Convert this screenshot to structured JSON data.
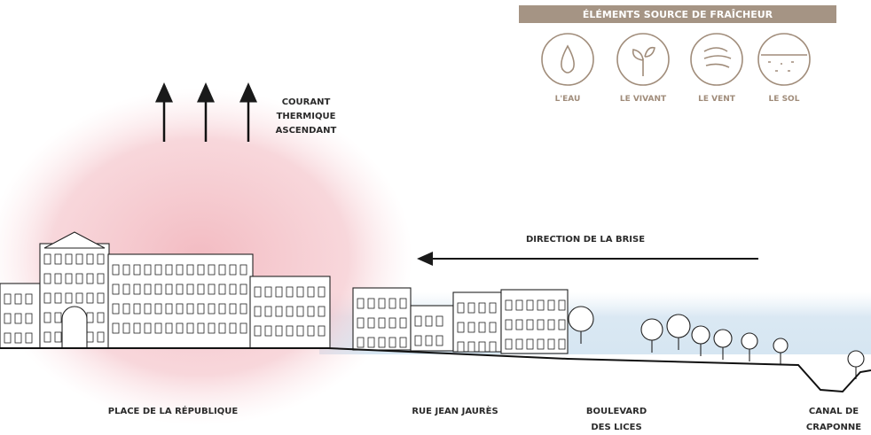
{
  "legend": {
    "title": "ÉLÉMENTS SOURCE DE FRAÎCHEUR",
    "items": [
      "L'EAU",
      "LE VIVANT",
      "LE VENT",
      "LE SOL"
    ]
  },
  "annotations": {
    "thermal": [
      "COURANT",
      "THERMIQUE",
      "ASCENDANT"
    ],
    "breeze": "DIRECTION DE LA BRISE"
  },
  "places": [
    [
      "PLACE DE LA RÉPUBLIQUE"
    ],
    [
      "RUE JEAN JAURÈS"
    ],
    [
      "BOULEVARD",
      "DES LICES"
    ],
    [
      "CANAL DE",
      "CRAPONNE"
    ]
  ]
}
